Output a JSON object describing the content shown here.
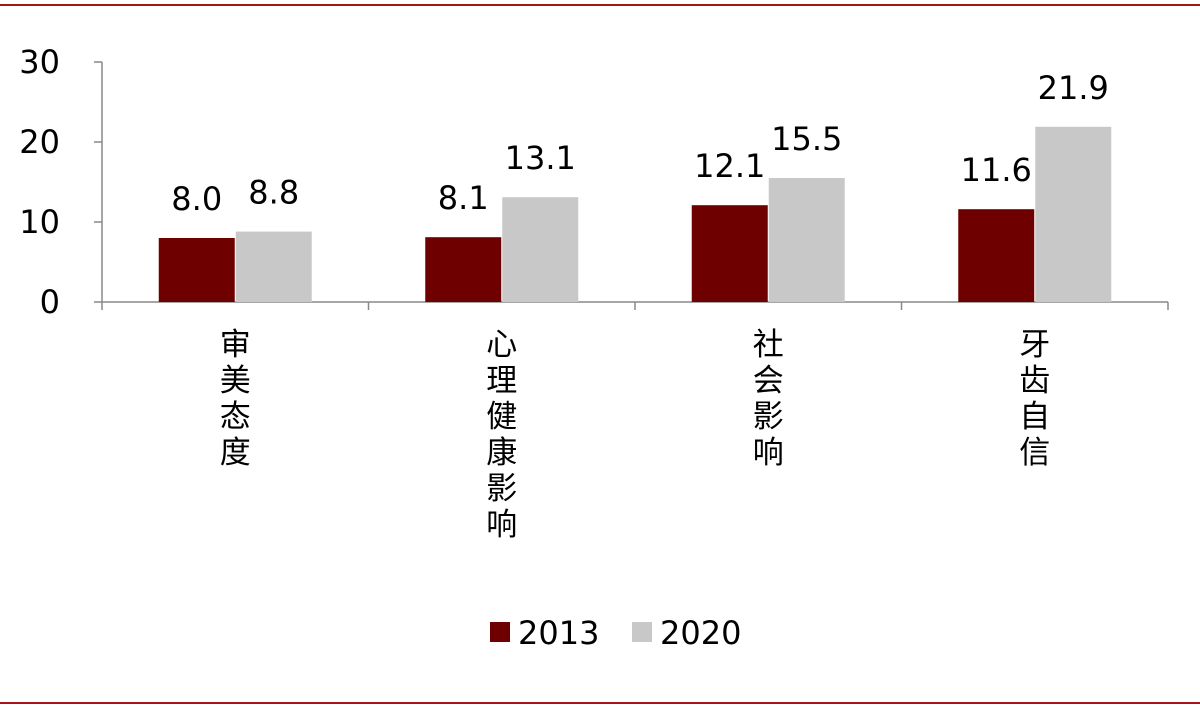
{
  "colors": {
    "rule": "#a8141c",
    "series_2013": "#6e0000",
    "series_2020": "#c8c8c8",
    "axis": "#888888"
  },
  "chart_data": {
    "type": "bar",
    "categories": [
      "审美态度",
      "心理健康影响",
      "社会影响",
      "牙齿自信"
    ],
    "series": [
      {
        "name": "2013",
        "values": [
          8.0,
          8.1,
          12.1,
          11.6
        ],
        "labels": [
          "8.0",
          "8.1",
          "12.1",
          "11.6"
        ]
      },
      {
        "name": "2020",
        "values": [
          8.8,
          13.1,
          15.5,
          21.9
        ],
        "labels": [
          "8.8",
          "13.1",
          "15.5",
          "21.9"
        ]
      }
    ],
    "yticks": [
      0,
      10,
      20,
      30
    ],
    "ylim": [
      0,
      30
    ],
    "title": "",
    "xlabel": "",
    "ylabel": "",
    "grid": false,
    "legend_position": "bottom-center"
  }
}
